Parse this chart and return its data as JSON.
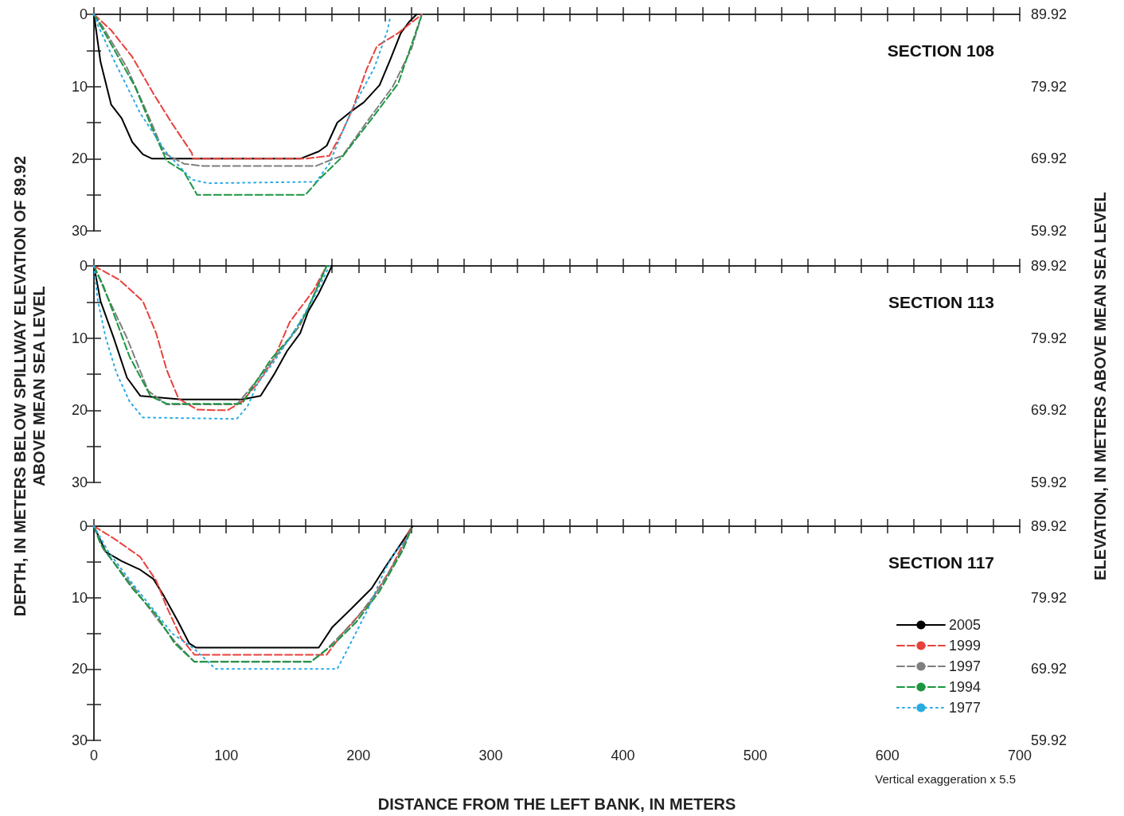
{
  "chart_data": [
    {
      "type": "line",
      "title": "SECTION 108",
      "tick_labels": "y",
      "xlim": [
        0,
        700
      ],
      "xticks": [
        0,
        {
          "value": 20,
          "label": null
        },
        {
          "value": 40,
          "label": null
        },
        {
          "value": 60,
          "label": null
        },
        {
          "value": 80,
          "label": null
        },
        100,
        {
          "value": 120,
          "label": null
        },
        {
          "value": 140,
          "label": null
        },
        {
          "value": 160,
          "label": null
        },
        {
          "value": 180,
          "label": null
        },
        200,
        {
          "value": 220,
          "label": null
        },
        {
          "value": 240,
          "label": null
        },
        {
          "value": 260,
          "label": null
        },
        {
          "value": 280,
          "label": null
        },
        300,
        {
          "value": 320,
          "label": null
        },
        {
          "value": 340,
          "label": null
        },
        {
          "value": 360,
          "label": null
        },
        {
          "value": 380,
          "label": null
        },
        400,
        {
          "value": 420,
          "label": null
        },
        {
          "value": 440,
          "label": null
        },
        {
          "value": 460,
          "label": null
        },
        {
          "value": 480,
          "label": null
        },
        500,
        {
          "value": 520,
          "label": null
        },
        {
          "value": 540,
          "label": null
        },
        {
          "value": 560,
          "label": null
        },
        {
          "value": 580,
          "label": null
        },
        600,
        {
          "value": 620,
          "label": null
        },
        {
          "value": 640,
          "label": null
        },
        {
          "value": 660,
          "label": null
        },
        {
          "value": 680,
          "label": null
        },
        700
      ],
      "ylim": [
        30,
        0
      ],
      "yticks": [
        0,
        {
          "value": 5,
          "label": null
        },
        10,
        {
          "value": 15,
          "label": null
        },
        20,
        {
          "value": 25,
          "label": null
        },
        30
      ],
      "y2lim": [
        59.92,
        89.92
      ],
      "y2ticks": [
        59.92,
        {
          "value": 64.92,
          "label": null
        },
        69.92,
        {
          "value": 74.92,
          "label": null
        },
        79.92,
        {
          "value": 84.92,
          "label": null
        },
        89.92
      ],
      "series": [
        {
          "color": "#000000",
          "line_style": "solid",
          "x": [
            0,
            5,
            13,
            21,
            29,
            37,
            44,
            156,
            170,
            176,
            184,
            194,
            204,
            216,
            224,
            232,
            238,
            244
          ],
          "values": [
            0,
            6.6,
            12.5,
            14.4,
            17.7,
            19.4,
            20,
            20,
            19,
            18.2,
            15,
            13.5,
            12.2,
            9.8,
            6.3,
            2.6,
            1.1,
            0
          ]
        },
        {
          "color": "#e8413c",
          "line_style": "dashed",
          "x": [
            0,
            13,
            29,
            45,
            59,
            74,
            75,
            160,
            178,
            188,
            196,
            206,
            214,
            230,
            248
          ],
          "values": [
            0,
            2.2,
            5.9,
            11,
            15.1,
            19.2,
            20,
            20,
            19.6,
            16.2,
            12.9,
            7.7,
            4.4,
            2.6,
            0
          ]
        },
        {
          "color": "#7f7f7f",
          "line_style": "dashed",
          "x": [
            0,
            7,
            25,
            43,
            53,
            68,
            82,
            168,
            180,
            188,
            204,
            226,
            240,
            248
          ],
          "values": [
            0,
            1.8,
            7.4,
            14.8,
            19.2,
            20.7,
            21,
            21,
            20.1,
            19.6,
            15.5,
            10,
            4.8,
            0
          ]
        },
        {
          "color": "#1a9641",
          "line_style": "dashed",
          "x": [
            0,
            7,
            31,
            45,
            55,
            68,
            78,
            160,
            170,
            188,
            212,
            230,
            248
          ],
          "values": [
            0,
            2.2,
            10,
            16.2,
            20.3,
            21.8,
            25,
            25,
            22.9,
            19.7,
            14,
            9.6,
            0
          ]
        },
        {
          "color": "#29abe2",
          "line_style": "dotted",
          "x": [
            0,
            3,
            15,
            35,
            55,
            74,
            86,
            168,
            178,
            188,
            198,
            212,
            222,
            224
          ],
          "values": [
            0,
            1.5,
            6.3,
            13.7,
            19.2,
            22.9,
            23.4,
            23.2,
            20.7,
            16.2,
            12.2,
            7.4,
            2.2,
            0.4
          ]
        }
      ]
    },
    {
      "type": "line",
      "title": "SECTION 113",
      "tick_labels": "y",
      "ylabel": "DEPTH, IN METERS BELOW SPILLWAY ELEVATION OF 89.92 ABOVE MEAN SEA LEVEL",
      "y2label": "ELEVATION, IN METERS ABOVE MEAN SEA LEVEL",
      "xlim": [
        0,
        700
      ],
      "xticks": [
        0,
        {
          "value": 20,
          "label": null
        },
        {
          "value": 40,
          "label": null
        },
        {
          "value": 60,
          "label": null
        },
        {
          "value": 80,
          "label": null
        },
        100,
        {
          "value": 120,
          "label": null
        },
        {
          "value": 140,
          "label": null
        },
        {
          "value": 160,
          "label": null
        },
        {
          "value": 180,
          "label": null
        },
        200,
        {
          "value": 220,
          "label": null
        },
        {
          "value": 240,
          "label": null
        },
        {
          "value": 260,
          "label": null
        },
        {
          "value": 280,
          "label": null
        },
        300,
        {
          "value": 320,
          "label": null
        },
        {
          "value": 340,
          "label": null
        },
        {
          "value": 360,
          "label": null
        },
        {
          "value": 380,
          "label": null
        },
        400,
        {
          "value": 420,
          "label": null
        },
        {
          "value": 440,
          "label": null
        },
        {
          "value": 460,
          "label": null
        },
        {
          "value": 480,
          "label": null
        },
        500,
        {
          "value": 520,
          "label": null
        },
        {
          "value": 540,
          "label": null
        },
        {
          "value": 560,
          "label": null
        },
        {
          "value": 580,
          "label": null
        },
        600,
        {
          "value": 620,
          "label": null
        },
        {
          "value": 640,
          "label": null
        },
        {
          "value": 660,
          "label": null
        },
        {
          "value": 680,
          "label": null
        },
        700
      ],
      "ylim": [
        30,
        0
      ],
      "yticks": [
        0,
        {
          "value": 5,
          "label": null
        },
        10,
        {
          "value": 15,
          "label": null
        },
        20,
        {
          "value": 25,
          "label": null
        },
        30
      ],
      "y2lim": [
        59.92,
        89.92
      ],
      "y2ticks": [
        59.92,
        {
          "value": 64.92,
          "label": null
        },
        69.92,
        {
          "value": 74.92,
          "label": null
        },
        79.92,
        {
          "value": 84.92,
          "label": null
        },
        89.92
      ],
      "series": [
        {
          "color": "#000000",
          "line_style": "solid",
          "x": [
            0,
            5,
            15,
            25,
            35,
            66,
            112,
            126,
            136,
            146,
            156,
            162,
            170,
            180
          ],
          "values": [
            0,
            4.9,
            10,
            15.5,
            18,
            18.5,
            18.5,
            18,
            15.1,
            11.8,
            9.3,
            6.3,
            3.8,
            0
          ]
        },
        {
          "color": "#e8413c",
          "line_style": "dashed",
          "x": [
            0,
            19,
            37,
            47,
            55,
            64,
            78,
            92,
            101,
            112,
            124,
            136,
            148,
            166,
            176
          ],
          "values": [
            0,
            1.9,
            4.9,
            9.3,
            14.4,
            18.4,
            19.9,
            20,
            20,
            18.8,
            16.2,
            12.9,
            7.8,
            3.4,
            0
          ]
        },
        {
          "color": "#7f7f7f",
          "line_style": "dashed",
          "x": [
            0,
            9,
            25,
            41,
            55,
            108,
            120,
            136,
            156,
            176
          ],
          "values": [
            0,
            3.8,
            10,
            17.3,
            19.2,
            19.2,
            16.6,
            12.9,
            8.2,
            0
          ]
        },
        {
          "color": "#1a9641",
          "line_style": "dashed",
          "x": [
            0,
            7,
            27,
            43,
            55,
            112,
            122,
            134,
            148,
            160,
            176
          ],
          "values": [
            0,
            2.7,
            12.6,
            18.1,
            19.1,
            19.1,
            16.2,
            12.9,
            10,
            6.7,
            0
          ]
        },
        {
          "color": "#29abe2",
          "line_style": "dotted",
          "x": [
            0,
            3,
            9,
            17,
            27,
            37,
            108,
            116,
            124,
            136,
            152,
            166,
            178
          ],
          "values": [
            0,
            4.9,
            10,
            14.8,
            18.8,
            21,
            21.2,
            19.5,
            16.2,
            13.3,
            8.9,
            4.5,
            0
          ]
        }
      ]
    },
    {
      "type": "line",
      "title": "SECTION 117",
      "xlabel": "DISTANCE FROM THE LEFT BANK, IN METERS",
      "annotations": [
        "Vertical exaggeration x 5.5"
      ],
      "legend": "bottom right",
      "xlim": [
        0,
        700
      ],
      "xticks": [
        0,
        {
          "value": 20,
          "label": null
        },
        {
          "value": 40,
          "label": null
        },
        {
          "value": 60,
          "label": null
        },
        {
          "value": 80,
          "label": null
        },
        100,
        {
          "value": 120,
          "label": null
        },
        {
          "value": 140,
          "label": null
        },
        {
          "value": 160,
          "label": null
        },
        {
          "value": 180,
          "label": null
        },
        200,
        {
          "value": 220,
          "label": null
        },
        {
          "value": 240,
          "label": null
        },
        {
          "value": 260,
          "label": null
        },
        {
          "value": 280,
          "label": null
        },
        300,
        {
          "value": 320,
          "label": null
        },
        {
          "value": 340,
          "label": null
        },
        {
          "value": 360,
          "label": null
        },
        {
          "value": 380,
          "label": null
        },
        400,
        {
          "value": 420,
          "label": null
        },
        {
          "value": 440,
          "label": null
        },
        {
          "value": 460,
          "label": null
        },
        {
          "value": 480,
          "label": null
        },
        500,
        {
          "value": 520,
          "label": null
        },
        {
          "value": 540,
          "label": null
        },
        {
          "value": 560,
          "label": null
        },
        {
          "value": 580,
          "label": null
        },
        600,
        {
          "value": 620,
          "label": null
        },
        {
          "value": 640,
          "label": null
        },
        {
          "value": 660,
          "label": null
        },
        {
          "value": 680,
          "label": null
        },
        700
      ],
      "ylim": [
        30,
        0
      ],
      "yticks": [
        0,
        {
          "value": 5,
          "label": null
        },
        10,
        {
          "value": 15,
          "label": null
        },
        20,
        {
          "value": 25,
          "label": null
        },
        30
      ],
      "y2lim": [
        59.92,
        89.92
      ],
      "y2ticks": [
        59.92,
        {
          "value": 64.92,
          "label": null
        },
        69.92,
        {
          "value": 74.92,
          "label": null
        },
        79.92,
        {
          "value": 84.92,
          "label": null
        },
        89.92
      ],
      "series": [
        {
          "name": "2005",
          "color": "#000000",
          "line_style": "solid",
          "x": [
            0,
            9,
            21,
            35,
            45,
            53,
            64,
            72,
            77,
            170,
            180,
            196,
            210,
            220,
            232,
            241
          ],
          "values": [
            0,
            3.6,
            4.9,
            6.1,
            7.4,
            9.8,
            13.5,
            16.4,
            17,
            17,
            14.2,
            11.3,
            8.7,
            5.8,
            2.5,
            0
          ]
        },
        {
          "name": "1999",
          "color": "#e8413c",
          "line_style": "dashed",
          "x": [
            0,
            15,
            35,
            47,
            55,
            66,
            76,
            176,
            188,
            208,
            224,
            236,
            240
          ],
          "values": [
            0,
            1.7,
            4.3,
            7.6,
            11.3,
            15.7,
            18,
            18,
            15,
            10.9,
            6.1,
            1.7,
            0
          ]
        },
        {
          "name": "1997",
          "color": "#7f7f7f",
          "line_style": "dashed",
          "x": [
            0,
            7,
            29,
            47,
            61,
            76,
            164,
            176,
            196,
            216,
            232,
            240
          ],
          "values": [
            0,
            3.2,
            8.3,
            12.8,
            16.1,
            19,
            19,
            17.2,
            13.5,
            8.7,
            3.6,
            0.3
          ]
        },
        {
          "name": "1994",
          "color": "#1a9641",
          "line_style": "dashed",
          "x": [
            0,
            5,
            29,
            47,
            61,
            76,
            164,
            182,
            198,
            216,
            234,
            240
          ],
          "values": [
            0,
            2.5,
            8.7,
            12.4,
            16.4,
            19,
            19,
            16.4,
            13.5,
            9.1,
            3.2,
            0.3
          ]
        },
        {
          "name": "1977",
          "color": "#29abe2",
          "line_style": "dotted",
          "x": [
            0,
            11,
            29,
            45,
            59,
            76,
            92,
            184,
            196,
            208,
            220,
            228,
            237
          ],
          "values": [
            0,
            3.6,
            8,
            11.7,
            15,
            17.2,
            20,
            20,
            15.7,
            11.3,
            6.1,
            3.6,
            1.7
          ]
        }
      ]
    }
  ]
}
